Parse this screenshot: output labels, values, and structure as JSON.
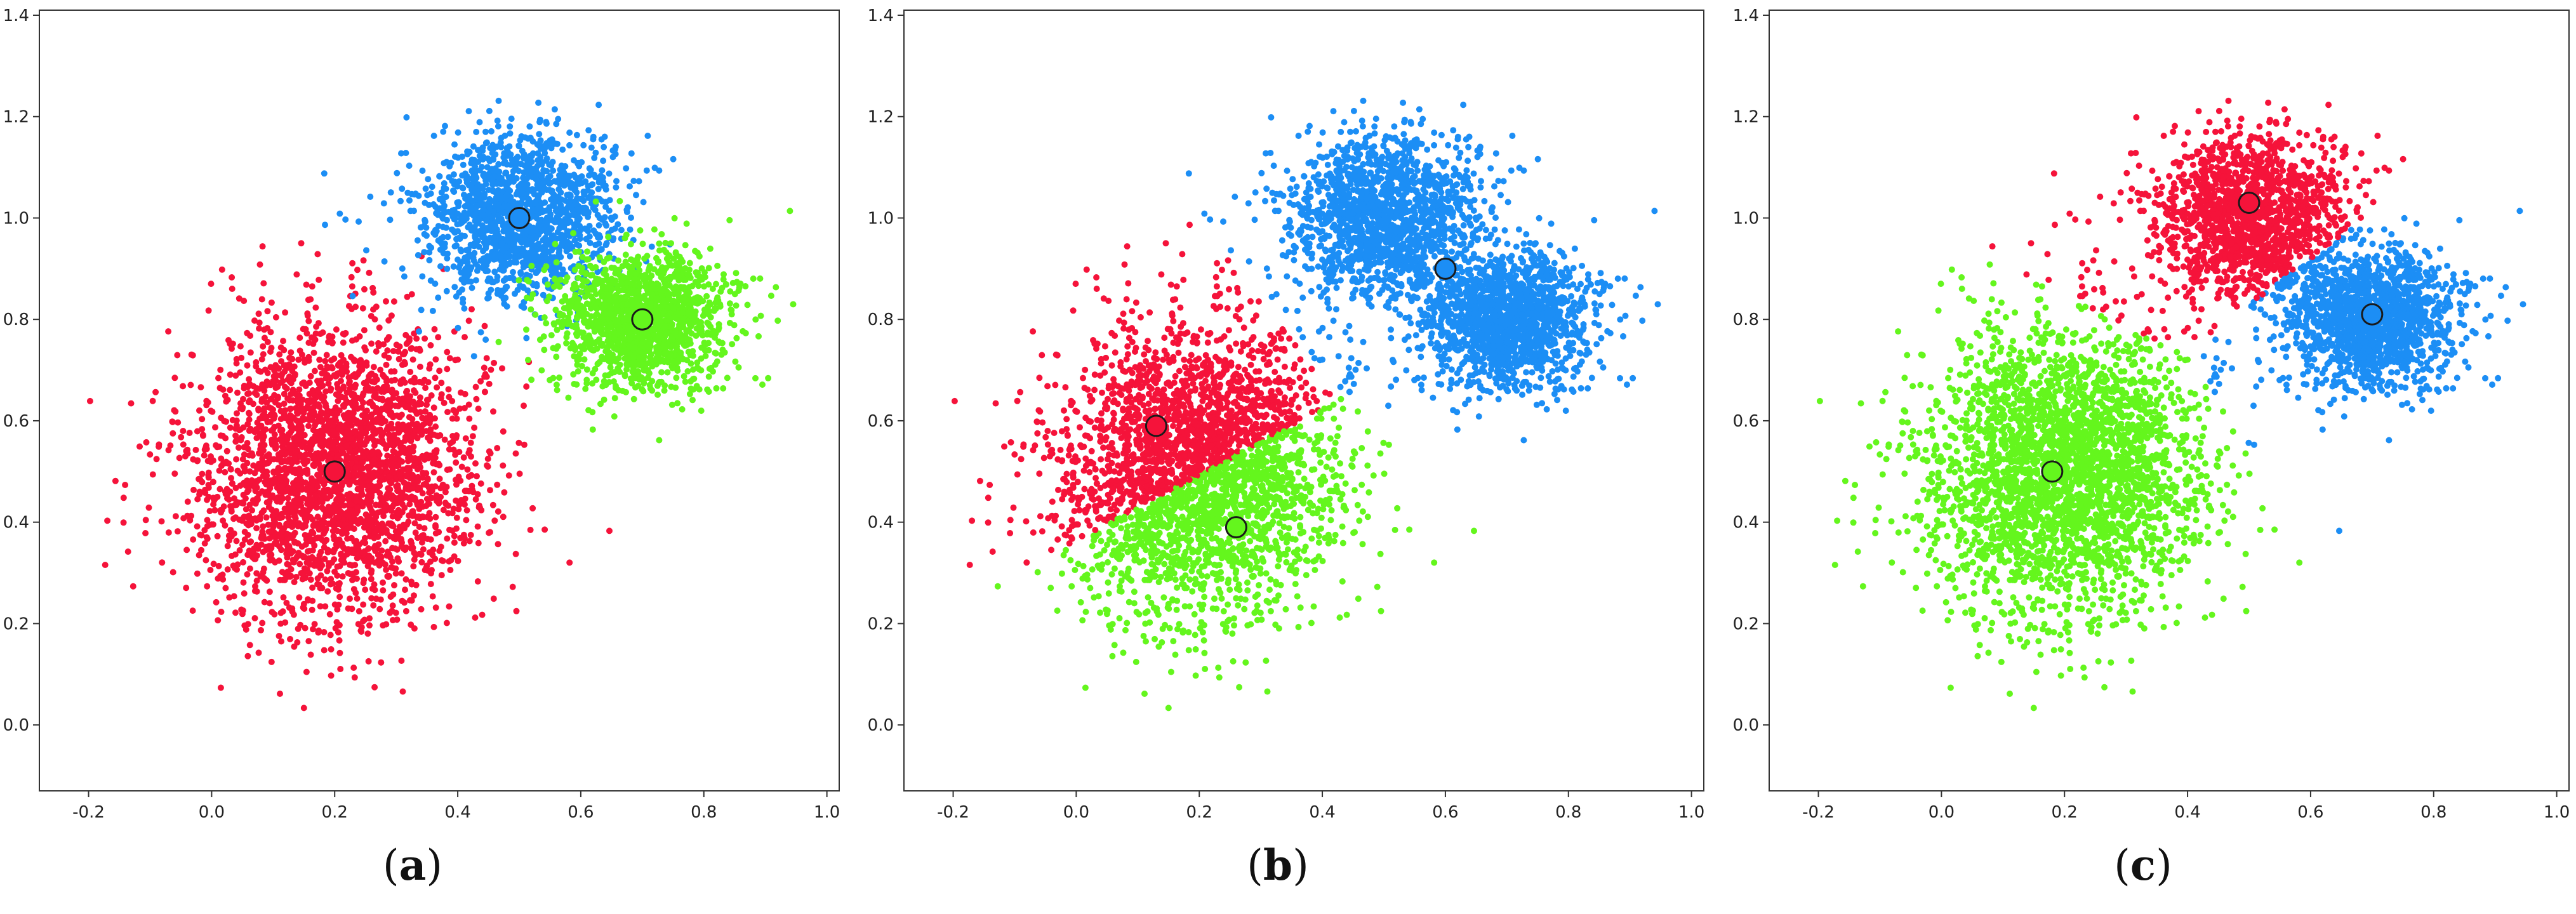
{
  "figure": {
    "panels": [
      {
        "caption_open": "(",
        "caption_letter": "a",
        "caption_close": ")"
      },
      {
        "caption_open": "(",
        "caption_letter": "b",
        "caption_close": ")"
      },
      {
        "caption_open": "(",
        "caption_letter": "c",
        "caption_close": ")"
      }
    ]
  },
  "colors": {
    "red": "#f5133a",
    "blue": "#1c8ef5",
    "green": "#64f61d",
    "centroid_edge": "#1a1a1a",
    "axes_edge": "#333333"
  },
  "chart_data": [
    {
      "type": "scatter",
      "title": "",
      "xlabel": "",
      "ylabel": "",
      "xlim": [
        -0.28,
        1.02
      ],
      "ylim": [
        -0.13,
        1.41
      ],
      "xticks": [
        "-0.2",
        "0.0",
        "0.2",
        "0.4",
        "0.6",
        "0.8",
        "1.0"
      ],
      "yticks": [
        "0.0",
        "0.2",
        "0.4",
        "0.6",
        "0.8",
        "1.0",
        "1.2",
        "1.4"
      ],
      "grid": false,
      "clusters": [
        {
          "color": "red",
          "center": [
            0.2,
            0.5
          ],
          "spread": [
            0.11,
            0.14
          ],
          "n": 3000
        },
        {
          "color": "blue",
          "center": [
            0.5,
            1.0
          ],
          "spread": [
            0.08,
            0.08
          ],
          "n": 1500
        },
        {
          "color": "green",
          "center": [
            0.7,
            0.8
          ],
          "spread": [
            0.07,
            0.07
          ],
          "n": 1500
        }
      ],
      "assignment": "generating",
      "centroids": [
        {
          "color": "red",
          "x": 0.2,
          "y": 0.5
        },
        {
          "color": "blue",
          "x": 0.5,
          "y": 1.0
        },
        {
          "color": "green",
          "x": 0.7,
          "y": 0.8
        }
      ]
    },
    {
      "type": "scatter",
      "title": "",
      "xlabel": "",
      "ylabel": "",
      "xlim": [
        -0.28,
        1.02
      ],
      "ylim": [
        -0.13,
        1.41
      ],
      "xticks": [
        "-0.2",
        "0.0",
        "0.2",
        "0.4",
        "0.6",
        "0.8",
        "1.0"
      ],
      "yticks": [
        "0.0",
        "0.2",
        "0.4",
        "0.6",
        "0.8",
        "1.0",
        "1.2",
        "1.4"
      ],
      "grid": false,
      "assignment": "nearest-centroid",
      "centroids": [
        {
          "color": "red",
          "x": 0.13,
          "y": 0.59
        },
        {
          "color": "green",
          "x": 0.26,
          "y": 0.39
        },
        {
          "color": "blue",
          "x": 0.6,
          "y": 0.9
        }
      ]
    },
    {
      "type": "scatter",
      "title": "",
      "xlabel": "",
      "ylabel": "",
      "xlim": [
        -0.28,
        1.02
      ],
      "ylim": [
        -0.13,
        1.41
      ],
      "xticks": [
        "-0.2",
        "0.0",
        "0.2",
        "0.4",
        "0.6",
        "0.8",
        "1.0"
      ],
      "yticks": [
        "0.0",
        "0.2",
        "0.4",
        "0.6",
        "0.8",
        "1.0",
        "1.2",
        "1.4"
      ],
      "grid": false,
      "assignment": "nearest-centroid",
      "centroids": [
        {
          "color": "red",
          "x": 0.5,
          "y": 1.03
        },
        {
          "color": "blue",
          "x": 0.7,
          "y": 0.81
        },
        {
          "color": "green",
          "x": 0.18,
          "y": 0.5
        }
      ]
    }
  ]
}
